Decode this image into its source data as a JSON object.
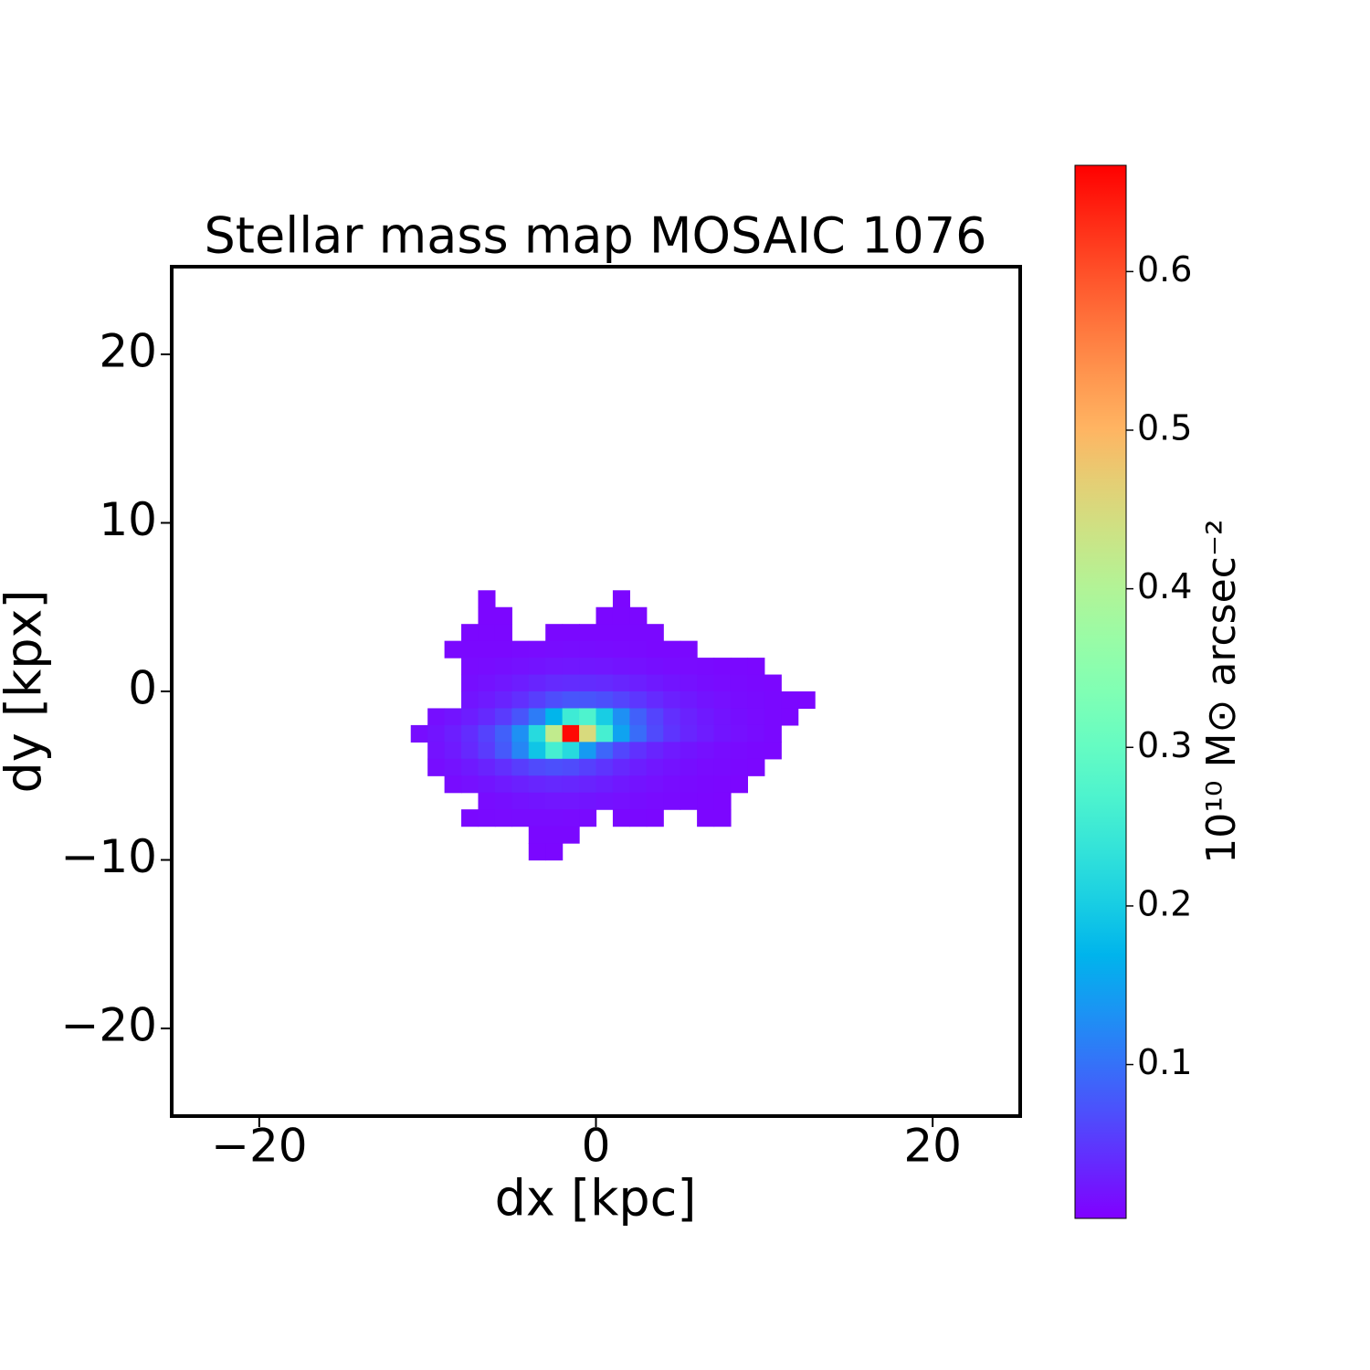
{
  "chart_data": {
    "type": "heatmap",
    "title": "Stellar mass map MOSAIC 1076",
    "xlabel": "dx [kpc]",
    "ylabel": "dy [kpx]",
    "colorbar_label": "10¹⁰ M⊙ arcsec⁻²",
    "colormap": "rainbow",
    "xlim": [
      -25.2,
      25.2
    ],
    "ylim": [
      -25.2,
      25.2
    ],
    "xticks": [
      {
        "value": -20,
        "label": "−20"
      },
      0,
      20
    ],
    "yticks": [
      {
        "value": -20,
        "label": "−20"
      },
      {
        "value": -10,
        "label": "−10"
      },
      0,
      10,
      20
    ],
    "clim": [
      0.003,
      0.667
    ],
    "cticks": [
      0.1,
      0.2,
      0.3,
      0.4,
      0.5,
      0.6
    ],
    "x": [
      -10.5,
      -9.5,
      -8.5,
      -7.5,
      -6.5,
      -5.5,
      -4.5,
      -3.5,
      -2.5,
      -1.5,
      -0.5,
      0.5,
      1.5,
      2.5,
      3.5,
      4.5,
      5.5,
      6.5,
      7.5,
      8.5,
      9.5,
      10.5,
      11.5,
      12.5
    ],
    "y": [
      5.5,
      4.5,
      3.5,
      2.5,
      1.5,
      0.5,
      -0.5,
      -1.5,
      -2.5,
      -3.5,
      -4.5,
      -5.5,
      -6.5,
      -7.5,
      -8.5,
      -9.5
    ],
    "values": [
      [
        null,
        null,
        null,
        null,
        0.008,
        null,
        null,
        null,
        null,
        null,
        null,
        null,
        0.008,
        null,
        null,
        null,
        null,
        null,
        null,
        null,
        null,
        null,
        null,
        null
      ],
      [
        null,
        null,
        null,
        null,
        0.008,
        0.008,
        null,
        null,
        null,
        null,
        null,
        0.009,
        0.009,
        0.009,
        null,
        null,
        null,
        null,
        null,
        null,
        null,
        null,
        null,
        null
      ],
      [
        null,
        null,
        null,
        0.009,
        0.009,
        0.009,
        null,
        null,
        0.01,
        0.01,
        0.01,
        0.01,
        0.01,
        0.01,
        0.01,
        null,
        null,
        null,
        null,
        null,
        null,
        null,
        null,
        null
      ],
      [
        null,
        null,
        0.01,
        0.01,
        0.01,
        0.01,
        0.011,
        0.012,
        0.013,
        0.014,
        0.014,
        0.013,
        0.012,
        0.011,
        0.01,
        0.01,
        0.01,
        null,
        null,
        null,
        null,
        null,
        null,
        null
      ],
      [
        null,
        null,
        null,
        0.012,
        0.013,
        0.015,
        0.017,
        0.019,
        0.021,
        0.022,
        0.022,
        0.021,
        0.019,
        0.017,
        0.015,
        0.013,
        0.012,
        0.011,
        0.01,
        0.01,
        0.009,
        null,
        null,
        null
      ],
      [
        null,
        null,
        null,
        0.015,
        0.018,
        0.022,
        0.027,
        0.033,
        0.038,
        0.04,
        0.04,
        0.038,
        0.034,
        0.029,
        0.024,
        0.02,
        0.017,
        0.014,
        0.012,
        0.011,
        0.01,
        0.009,
        null,
        null
      ],
      [
        null,
        null,
        null,
        0.02,
        0.025,
        0.032,
        0.042,
        0.055,
        0.068,
        0.075,
        0.075,
        0.07,
        0.06,
        0.048,
        0.038,
        0.03,
        0.024,
        0.019,
        0.016,
        0.013,
        0.011,
        0.01,
        0.009,
        0.008
      ],
      [
        null,
        0.015,
        0.02,
        0.027,
        0.037,
        0.052,
        0.075,
        0.11,
        0.17,
        0.25,
        0.27,
        0.2,
        0.13,
        0.085,
        0.06,
        0.042,
        0.031,
        0.024,
        0.019,
        0.015,
        0.012,
        0.01,
        0.009,
        null
      ],
      [
        0.014,
        0.02,
        0.028,
        0.04,
        0.058,
        0.085,
        0.13,
        0.22,
        0.42,
        0.66,
        0.45,
        0.26,
        0.15,
        0.095,
        0.065,
        0.046,
        0.034,
        0.026,
        0.02,
        0.016,
        0.013,
        0.01,
        null,
        null
      ],
      [
        null,
        0.018,
        0.025,
        0.036,
        0.052,
        0.078,
        0.12,
        0.19,
        0.26,
        0.22,
        0.14,
        0.09,
        0.062,
        0.044,
        0.033,
        0.025,
        0.02,
        0.016,
        0.013,
        0.011,
        0.01,
        0.009,
        null,
        null
      ],
      [
        null,
        0.014,
        0.018,
        0.024,
        0.032,
        0.042,
        0.054,
        0.065,
        0.07,
        0.066,
        0.057,
        0.046,
        0.036,
        0.028,
        0.022,
        0.018,
        0.015,
        0.012,
        0.011,
        0.01,
        0.009,
        null,
        null,
        null
      ],
      [
        null,
        null,
        0.013,
        0.016,
        0.02,
        0.025,
        0.03,
        0.034,
        0.036,
        0.035,
        0.032,
        0.028,
        0.023,
        0.019,
        0.016,
        0.013,
        0.011,
        0.01,
        0.009,
        0.008,
        null,
        null,
        null,
        null
      ],
      [
        null,
        null,
        null,
        null,
        0.013,
        0.015,
        0.018,
        0.02,
        0.021,
        0.021,
        0.02,
        0.018,
        0.016,
        0.014,
        0.012,
        0.011,
        0.01,
        0.009,
        0.008,
        null,
        null,
        null,
        null,
        null
      ],
      [
        null,
        null,
        null,
        0.01,
        0.011,
        0.012,
        0.013,
        0.013,
        0.013,
        0.012,
        0.011,
        null,
        0.01,
        0.01,
        0.009,
        null,
        null,
        0.008,
        0.008,
        null,
        null,
        null,
        null,
        null
      ],
      [
        null,
        null,
        null,
        null,
        null,
        null,
        null,
        0.01,
        0.01,
        0.01,
        null,
        null,
        null,
        null,
        null,
        null,
        null,
        null,
        null,
        null,
        null,
        null,
        null,
        null
      ],
      [
        null,
        null,
        null,
        null,
        null,
        null,
        null,
        0.009,
        0.009,
        null,
        null,
        null,
        null,
        null,
        null,
        null,
        null,
        null,
        null,
        null,
        null,
        null,
        null,
        null
      ]
    ]
  }
}
